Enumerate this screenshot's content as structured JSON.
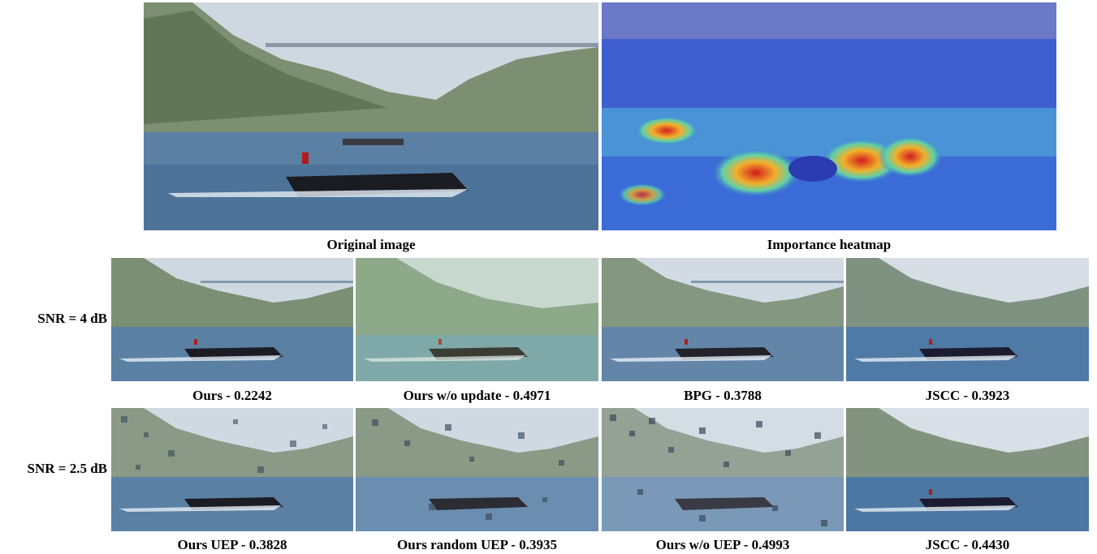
{
  "figure": {
    "top_row": [
      {
        "caption": "Original image",
        "variant": "original"
      },
      {
        "caption": "Importance heatmap",
        "variant": "heatmap"
      }
    ],
    "rows": [
      {
        "label": "SNR = 4 dB",
        "panels": [
          {
            "caption": "Ours - 0.2242",
            "variant": "clean"
          },
          {
            "caption": "Ours w/o update - 0.4971",
            "variant": "greenish"
          },
          {
            "caption": "BPG - 0.3788",
            "variant": "clean"
          },
          {
            "caption": "JSCC - 0.3923",
            "variant": "noisy"
          }
        ]
      },
      {
        "label": "SNR = 2.5 dB",
        "panels": [
          {
            "caption": "Ours UEP - 0.3828",
            "variant": "blocky-light"
          },
          {
            "caption": "Ours random UEP - 0.3935",
            "variant": "blocky-medium"
          },
          {
            "caption": "Ours w/o UEP - 0.4993",
            "variant": "blocky-heavy"
          },
          {
            "caption": "JSCC - 0.4430",
            "variant": "noisy"
          }
        ]
      }
    ]
  }
}
